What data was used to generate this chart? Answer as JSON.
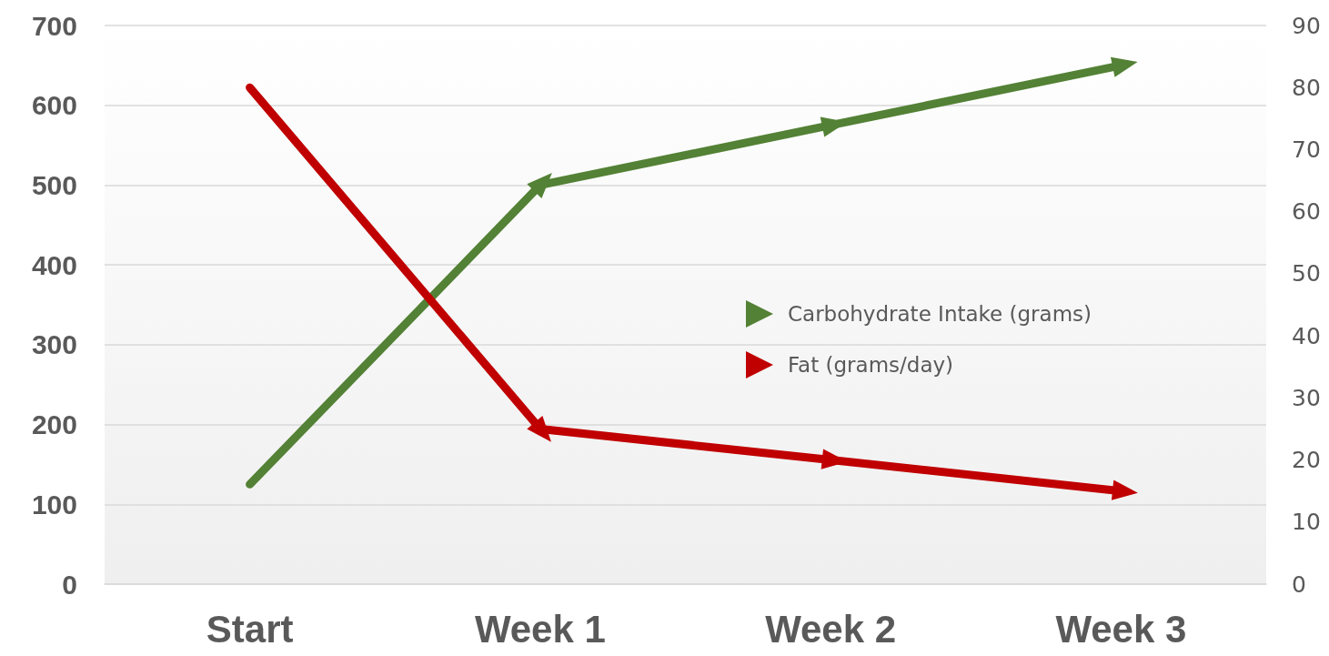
{
  "chart_data": {
    "type": "line",
    "categories": [
      "Start",
      "Week 1",
      "Week 2",
      "Week 3"
    ],
    "series": [
      {
        "name": "Carbohydrate Intake (grams)",
        "color": "#538135",
        "values": [
          125,
          500,
          575,
          650
        ]
      },
      {
        "name": "Fat (grams/day)",
        "color": "#c00000",
        "values": [
          80,
          25,
          20,
          15
        ],
        "axis": "y2"
      }
    ],
    "ylim": [
      0,
      700
    ],
    "yticks": [
      0,
      100,
      200,
      300,
      400,
      500,
      600,
      700
    ],
    "y2lim": [
      0,
      90
    ],
    "y2ticks": [
      0,
      10,
      20,
      30,
      40,
      50,
      60,
      70,
      80,
      90
    ],
    "grid": "y",
    "legend": "right",
    "marker": "triangle",
    "line_style": "solid"
  }
}
